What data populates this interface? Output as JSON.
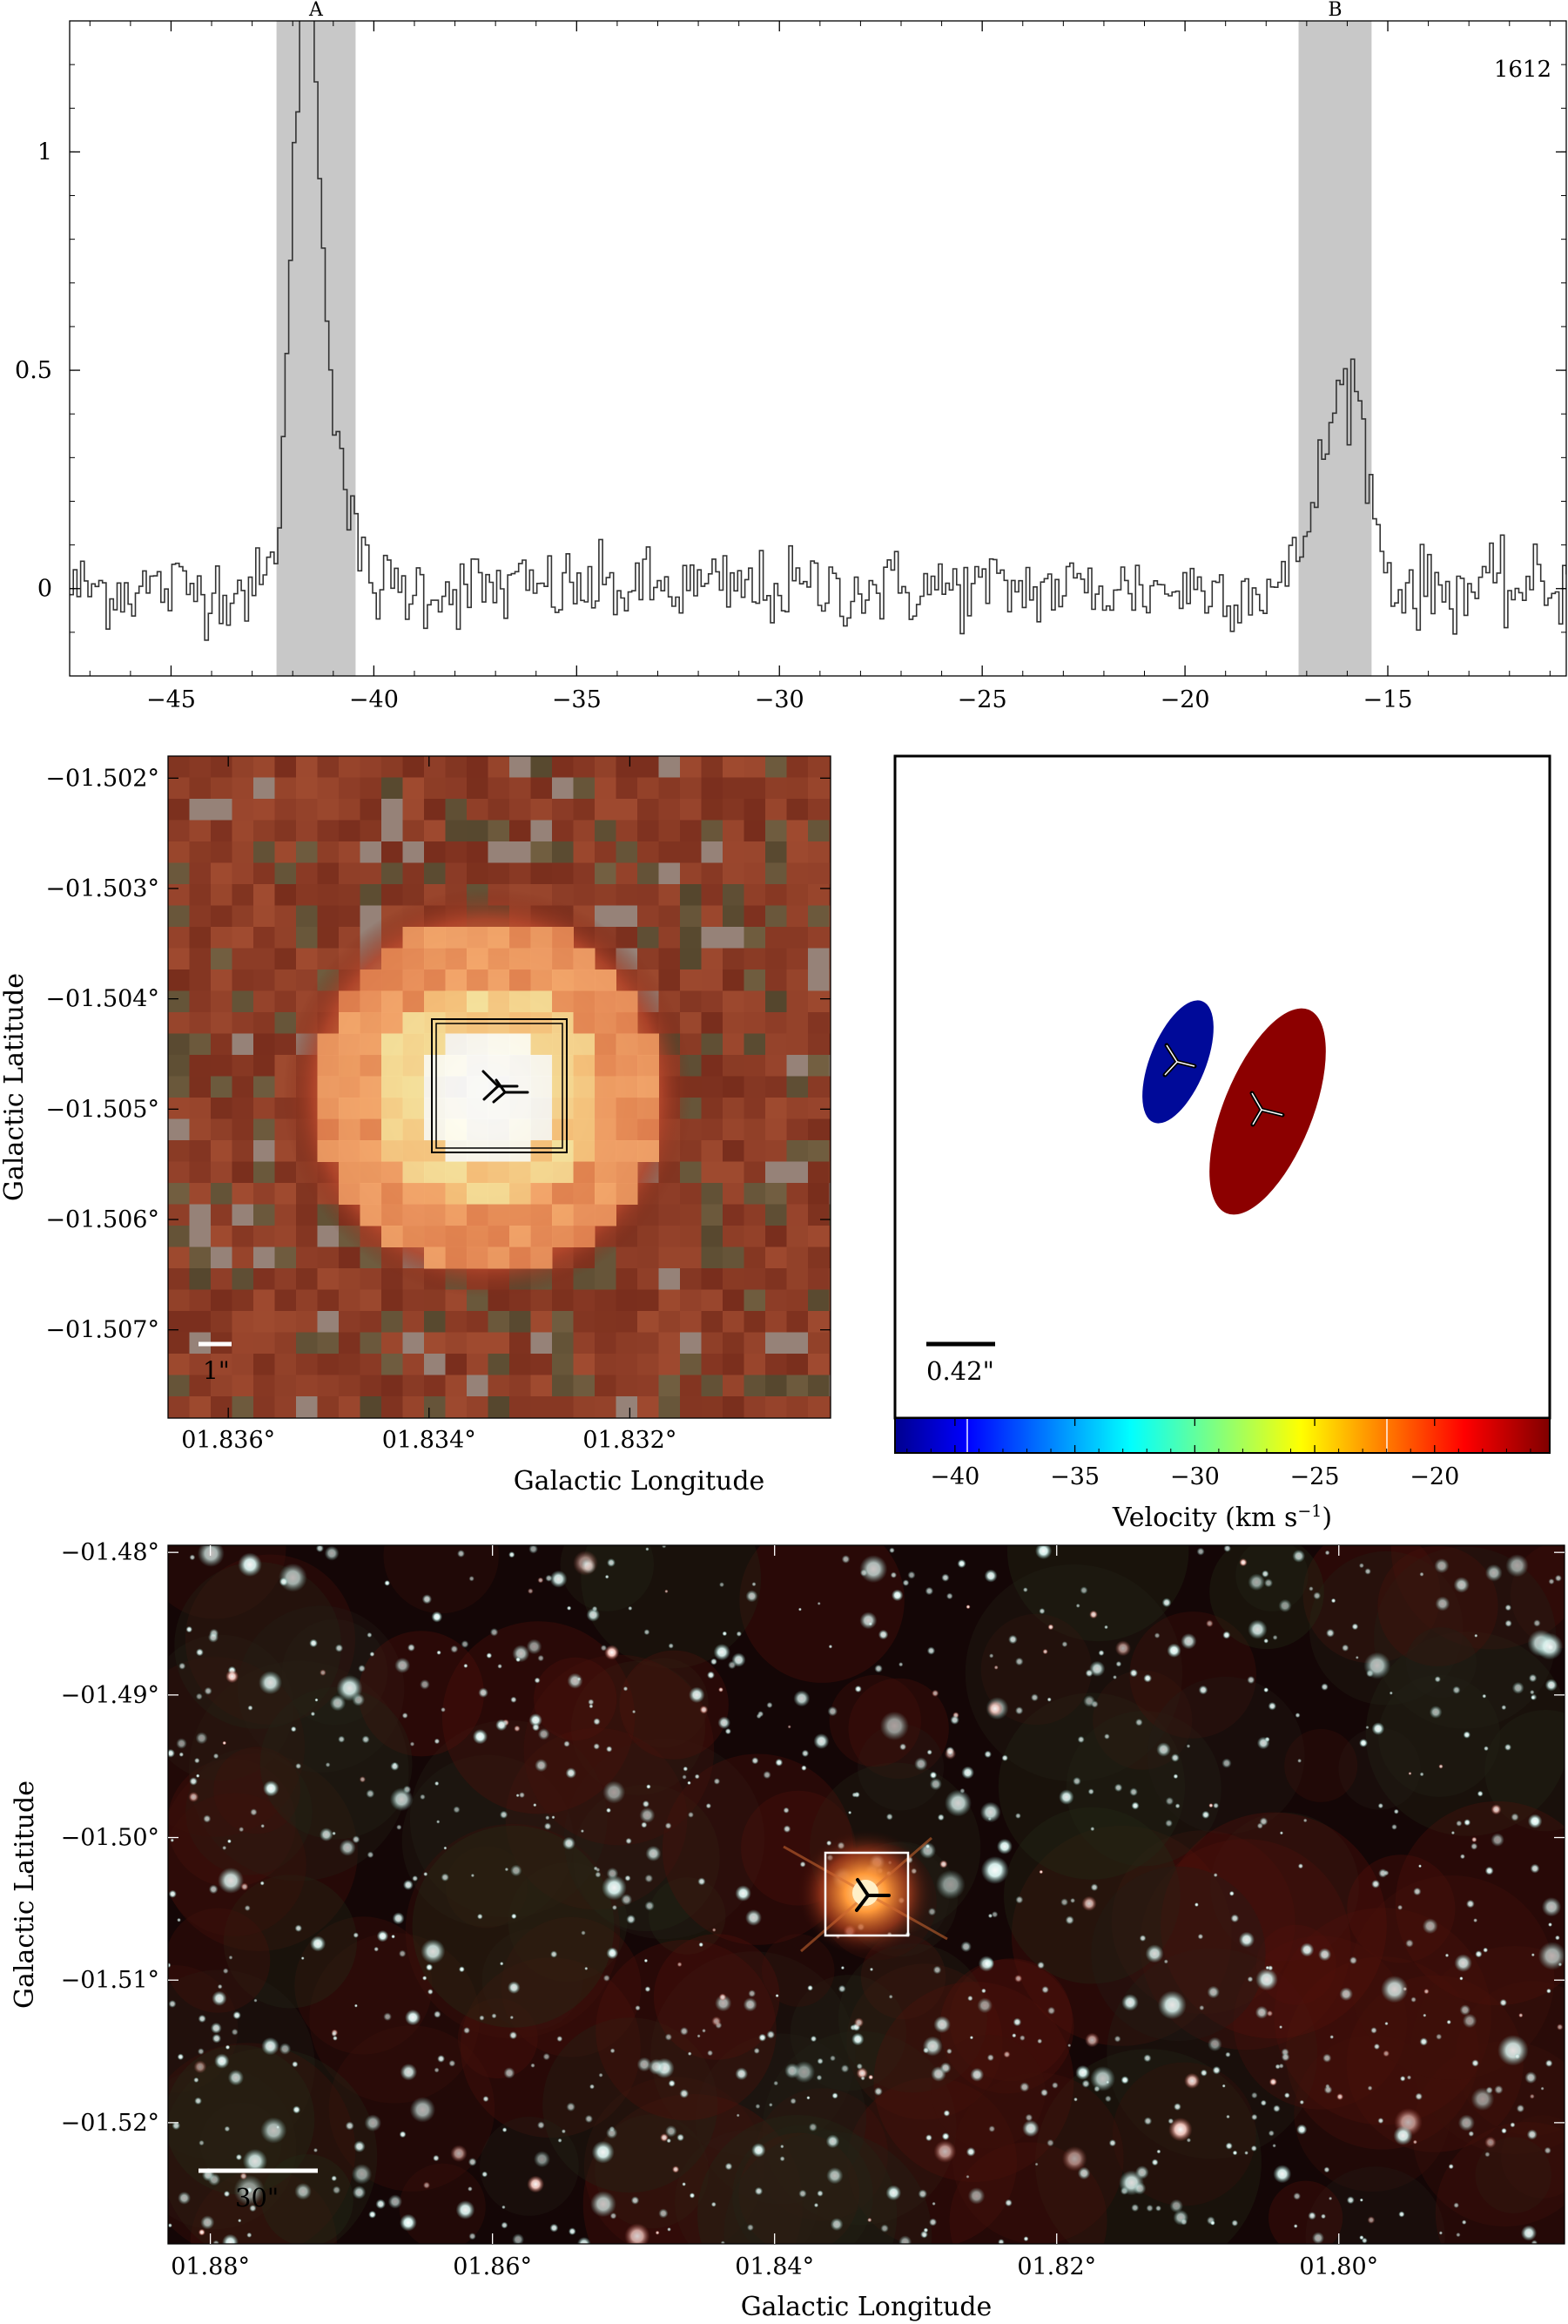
{
  "chart_data": [
    {
      "type": "line",
      "name": "spectrum",
      "annotation": "1612",
      "xlim": [
        -47.5,
        -10.6
      ],
      "ylim": [
        -0.2,
        1.3
      ],
      "xticks": [
        -45,
        -40,
        -35,
        -30,
        -25,
        -20,
        -15
      ],
      "xtick_labels": [
        "−45",
        "−40",
        "−35",
        "−30",
        "−25",
        "−20",
        "−15"
      ],
      "yticks": [
        0,
        0.5,
        1
      ],
      "ytick_labels": [
        "0",
        "0.5",
        "1"
      ],
      "shaded_regions": [
        {
          "label": "A",
          "x0": -42.4,
          "x1": -40.45
        },
        {
          "label": "B",
          "x0": -17.2,
          "x1": -15.4
        }
      ],
      "peaks": [
        {
          "center": -41.75,
          "amplitude": 1.22,
          "width": 0.32
        },
        {
          "center": -41.2,
          "amplitude": 0.38,
          "width": 0.45
        },
        {
          "center": -15.95,
          "amplitude": 0.45,
          "width": 0.42
        },
        {
          "center": -16.7,
          "amplitude": 0.18,
          "width": 0.4
        }
      ],
      "noise_rms": 0.045,
      "step": 0.09
    },
    {
      "type": "heatmap",
      "name": "zoom-image",
      "xlabel": "Galactic Longitude",
      "ylabel": "Galactic Latitude",
      "xlim": [
        1.8366,
        1.83
      ],
      "ylim": [
        -1.5078,
        -1.5018
      ],
      "xtick_labels": [
        "01.836°",
        "01.834°",
        "01.832°"
      ],
      "xtick_values": [
        1.836,
        1.834,
        1.832
      ],
      "ytick_labels": [
        "−01.502°",
        "−01.503°",
        "−01.504°",
        "−01.505°",
        "−01.506°",
        "−01.507°"
      ],
      "ytick_values": [
        -1.502,
        -1.503,
        -1.504,
        -1.505,
        -1.506,
        -1.507
      ],
      "scale_bar_label": "1\"",
      "source": {
        "l": 1.8332,
        "b": -1.5048
      }
    },
    {
      "type": "scatter",
      "name": "maser-spots",
      "scale_bar_label": "0.42\"",
      "colorbar": {
        "label": "Velocity (km s",
        "label_exponent": "−1",
        "label_close": ")",
        "min": -42.5,
        "max": -15.2,
        "ticks": [
          -40,
          -35,
          -30,
          -25,
          -20
        ],
        "tick_labels": [
          "−40",
          "−35",
          "−30",
          "−25",
          "−20"
        ]
      },
      "spots": [
        {
          "name": "A",
          "velocity": -41.7,
          "color": "#000a99"
        },
        {
          "name": "B",
          "velocity": -16.0,
          "color": "#8c0000"
        }
      ]
    },
    {
      "type": "heatmap",
      "name": "field-image",
      "xlabel": "Galactic Longitude",
      "ylabel": "Galactic Latitude",
      "xlim": [
        1.883,
        1.784
      ],
      "ylim": [
        -1.5285,
        -1.4795
      ],
      "xtick_labels": [
        "01.88°",
        "01.86°",
        "01.84°",
        "01.82°",
        "01.80°"
      ],
      "xtick_values": [
        1.88,
        1.86,
        1.84,
        1.82,
        1.8
      ],
      "ytick_labels": [
        "−01.48°",
        "−01.49°",
        "−01.50°",
        "−01.51°",
        "−01.52°"
      ],
      "ytick_values": [
        -1.48,
        -1.49,
        -1.5,
        -1.51,
        -1.52
      ],
      "scale_bar_label": "30\"",
      "source": {
        "l": 1.8333,
        "b": -1.5048
      }
    }
  ]
}
